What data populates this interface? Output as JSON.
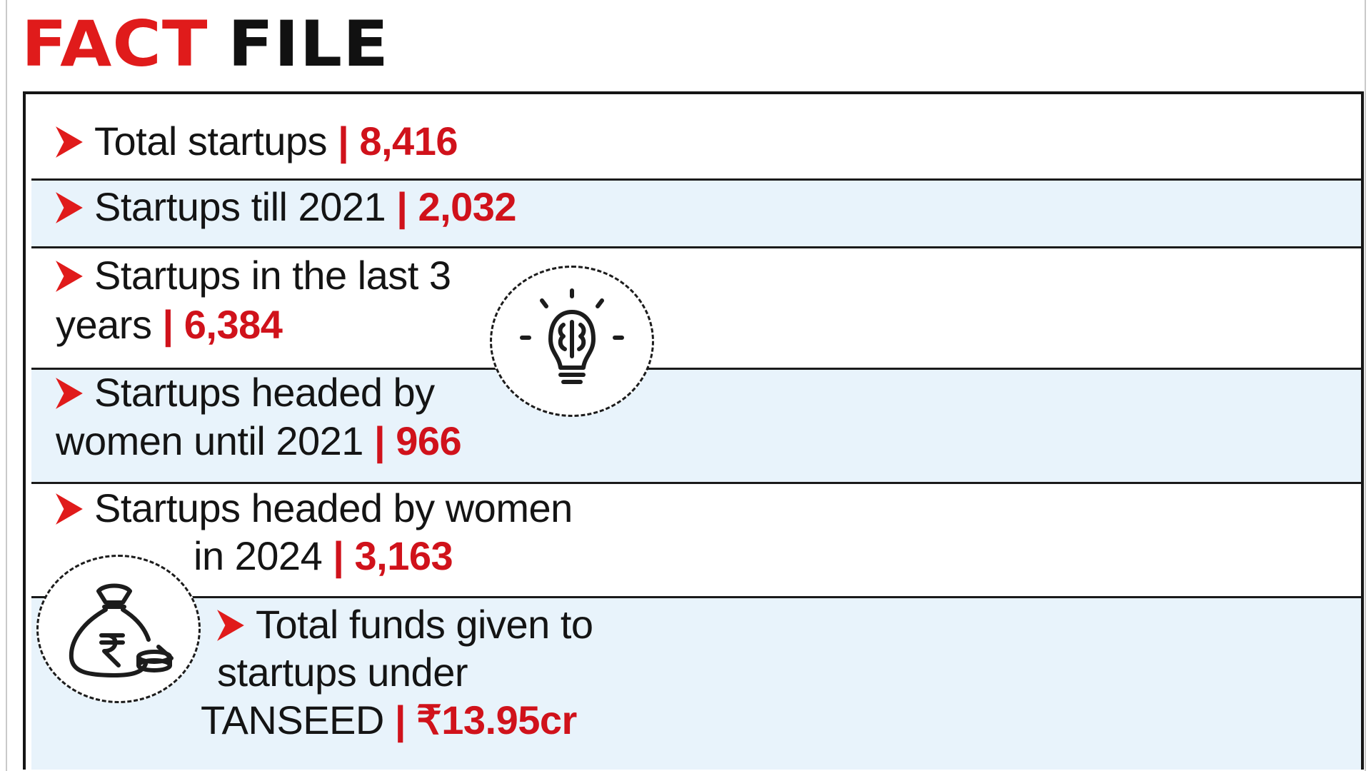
{
  "header": {
    "title_red": "FACT FILE",
    "title_black": ""
  },
  "facts": [
    {
      "line1": "Total startups",
      "line2": "",
      "separator": "|",
      "value": "8,416"
    },
    {
      "line1": "Startups till 2021",
      "line2": "",
      "separator": "|",
      "value": "2,032"
    },
    {
      "line1": "Startups in the last 3",
      "line2": "years",
      "separator": "|",
      "value": "6,384"
    },
    {
      "line1": "Startups headed by",
      "line2": "women until 2021",
      "separator": "|",
      "value": "966"
    },
    {
      "line1": "Startups headed by women",
      "line2": "in 2024",
      "separator": "|",
      "value": "3,163"
    },
    {
      "line1": "Total funds given to",
      "line2": "startups under",
      "line3": "TANSEED",
      "separator": "|",
      "value": "₹13.95cr"
    }
  ],
  "icons": {
    "lightbulb": "lightbulb-brain-icon",
    "money_bag": "rupee-money-bag-icon",
    "arrow": "red-chevron-arrow-icon"
  },
  "colors": {
    "accent_red": "#e01b1b",
    "value_red": "#d0121b",
    "band_blue": "#e8f3fb",
    "text": "#141414"
  }
}
